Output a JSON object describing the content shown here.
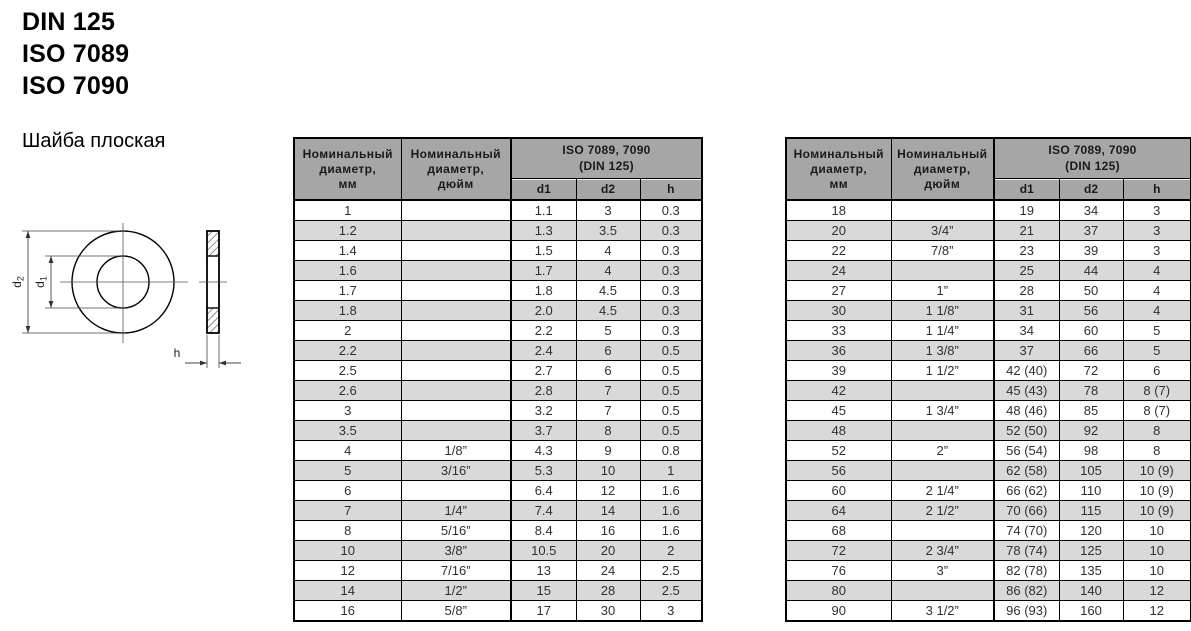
{
  "page": {
    "standards": [
      "DIN 125",
      "ISO 7089",
      "ISO 7090"
    ],
    "product_name": "Шайба плоская"
  },
  "drawing": {
    "dim_outer": "d",
    "dim_outer_sub": "2",
    "dim_inner": "d",
    "dim_inner_sub": "1",
    "dim_thickness": "h"
  },
  "table_header": {
    "col_mm_l1": "Номинальный",
    "col_mm_l2": "диаметр,",
    "col_mm_l3": "мм",
    "col_in_l1": "Номинальный",
    "col_in_l2": "диаметр,",
    "col_in_l3": "дюйм",
    "group_l1": "ISO 7089, 7090",
    "group_l2": "(DIN 125)",
    "sub_d1": "d1",
    "sub_d2": "d2",
    "sub_h": "h"
  },
  "table_left": {
    "rows": [
      [
        "1",
        "",
        "1.1",
        "3",
        "0.3"
      ],
      [
        "1.2",
        "",
        "1.3",
        "3.5",
        "0.3"
      ],
      [
        "1.4",
        "",
        "1.5",
        "4",
        "0.3"
      ],
      [
        "1.6",
        "",
        "1.7",
        "4",
        "0.3"
      ],
      [
        "1.7",
        "",
        "1.8",
        "4.5",
        "0.3"
      ],
      [
        "1.8",
        "",
        "2.0",
        "4.5",
        "0.3"
      ],
      [
        "2",
        "",
        "2.2",
        "5",
        "0.3"
      ],
      [
        "2.2",
        "",
        "2.4",
        "6",
        "0.5"
      ],
      [
        "2.5",
        "",
        "2.7",
        "6",
        "0.5"
      ],
      [
        "2.6",
        "",
        "2.8",
        "7",
        "0.5"
      ],
      [
        "3",
        "",
        "3.2",
        "7",
        "0.5"
      ],
      [
        "3.5",
        "",
        "3.7",
        "8",
        "0.5"
      ],
      [
        "4",
        "1/8”",
        "4.3",
        "9",
        "0.8"
      ],
      [
        "5",
        "3/16”",
        "5.3",
        "10",
        "1"
      ],
      [
        "6",
        "",
        "6.4",
        "12",
        "1.6"
      ],
      [
        "7",
        "1/4”",
        "7.4",
        "14",
        "1.6"
      ],
      [
        "8",
        "5/16”",
        "8.4",
        "16",
        "1.6"
      ],
      [
        "10",
        "3/8”",
        "10.5",
        "20",
        "2"
      ],
      [
        "12",
        "7/16”",
        "13",
        "24",
        "2.5"
      ],
      [
        "14",
        "1/2”",
        "15",
        "28",
        "2.5"
      ],
      [
        "16",
        "5/8”",
        "17",
        "30",
        "3"
      ]
    ]
  },
  "table_right": {
    "rows": [
      [
        "18",
        "",
        "19",
        "34",
        "3"
      ],
      [
        "20",
        "3/4”",
        "21",
        "37",
        "3"
      ],
      [
        "22",
        "7/8”",
        "23",
        "39",
        "3"
      ],
      [
        "24",
        "",
        "25",
        "44",
        "4"
      ],
      [
        "27",
        "1”",
        "28",
        "50",
        "4"
      ],
      [
        "30",
        "1 1/8”",
        "31",
        "56",
        "4"
      ],
      [
        "33",
        "1 1/4”",
        "34",
        "60",
        "5"
      ],
      [
        "36",
        "1 3/8”",
        "37",
        "66",
        "5"
      ],
      [
        "39",
        "1 1/2”",
        "42 (40)",
        "72",
        "6"
      ],
      [
        "42",
        "",
        "45 (43)",
        "78",
        "8 (7)"
      ],
      [
        "45",
        "1 3/4”",
        "48 (46)",
        "85",
        "8 (7)"
      ],
      [
        "48",
        "",
        "52 (50)",
        "92",
        "8"
      ],
      [
        "52",
        "2”",
        "56 (54)",
        "98",
        "8"
      ],
      [
        "56",
        "",
        "62 (58)",
        "105",
        "10 (9)"
      ],
      [
        "60",
        "2 1/4”",
        "66 (62)",
        "110",
        "10 (9)"
      ],
      [
        "64",
        "2 1/2”",
        "70 (66)",
        "115",
        "10 (9)"
      ],
      [
        "68",
        "",
        "74 (70)",
        "120",
        "10"
      ],
      [
        "72",
        "2 3/4”",
        "78 (74)",
        "125",
        "10"
      ],
      [
        "76",
        "3”",
        "82 (78)",
        "135",
        "10"
      ],
      [
        "80",
        "",
        "86 (82)",
        "140",
        "12"
      ],
      [
        "90",
        "3 1/2”",
        "96 (93)",
        "160",
        "12"
      ]
    ]
  },
  "colors": {
    "header_bg": "#a6a6a6",
    "row_alt_bg": "#d9d9d9",
    "border": "#000000"
  }
}
